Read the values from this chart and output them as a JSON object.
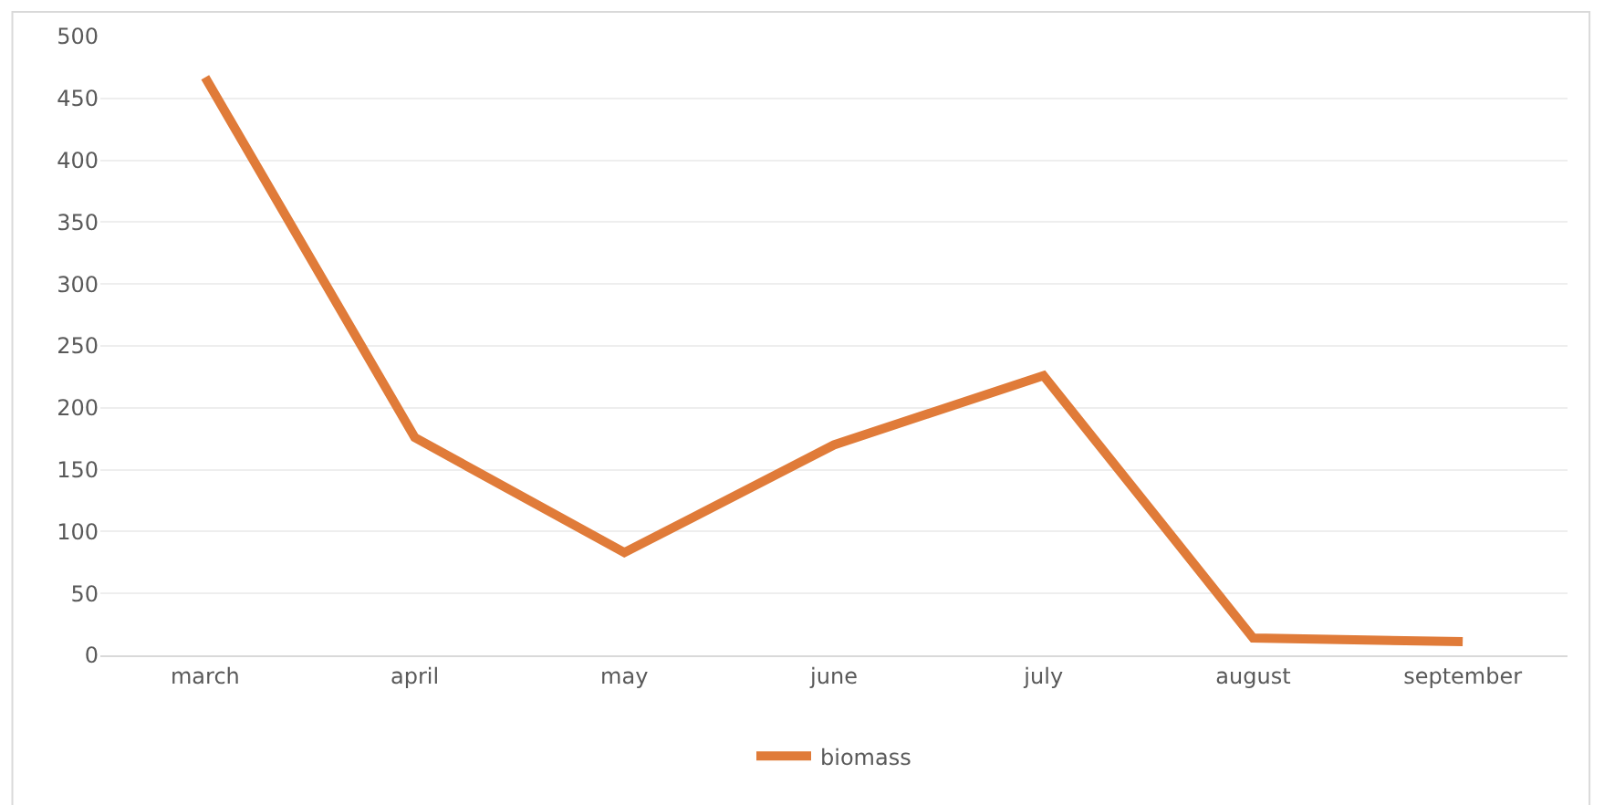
{
  "chart_data": {
    "type": "line",
    "categories": [
      "march",
      "april",
      "may",
      "june",
      "july",
      "august",
      "september"
    ],
    "series": [
      {
        "name": "biomass",
        "color": "#e07b39",
        "values": [
          467,
          176,
          83,
          170,
          226,
          14,
          11
        ]
      }
    ],
    "ylim": [
      0,
      500
    ],
    "yticks": [
      0,
      50,
      100,
      150,
      200,
      250,
      300,
      350,
      400,
      450,
      500
    ],
    "grid": "y",
    "legend": "bottom",
    "marker": "none",
    "line_style": "solid"
  }
}
